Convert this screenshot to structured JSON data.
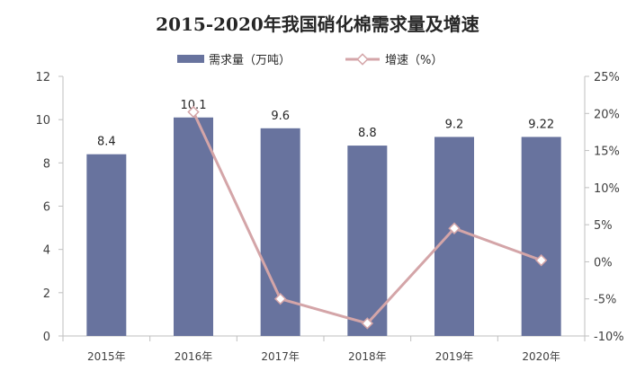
{
  "chart_data": {
    "type": "bar",
    "title": "2015-2020年我国硝化棉需求量及增速",
    "categories": [
      "2015年",
      "2016年",
      "2017年",
      "2018年",
      "2019年",
      "2020年"
    ],
    "series": [
      {
        "name": "需求量（万吨）",
        "type": "bar",
        "axis": "left",
        "values": [
          8.4,
          10.1,
          9.6,
          8.8,
          9.2,
          9.2
        ],
        "labels": [
          "8.4",
          "10.1",
          "9.6",
          "8.8",
          "9.2",
          "9.22"
        ],
        "color": "#68739e"
      },
      {
        "name": "增速（%）",
        "type": "line",
        "axis": "right",
        "values": [
          null,
          20.2,
          -5.0,
          -8.3,
          4.5,
          0.2
        ],
        "color": "#d4a5a8"
      }
    ],
    "y_left": {
      "min": 0,
      "max": 12,
      "step": 2,
      "ticks": [
        "0",
        "2",
        "4",
        "6",
        "8",
        "10",
        "12"
      ]
    },
    "y_right": {
      "min": -10,
      "max": 25,
      "step": 5,
      "ticks": [
        "-10%",
        "-5%",
        "0%",
        "5%",
        "10%",
        "15%",
        "20%",
        "25%"
      ]
    },
    "grid": false,
    "legend_position": "top"
  }
}
